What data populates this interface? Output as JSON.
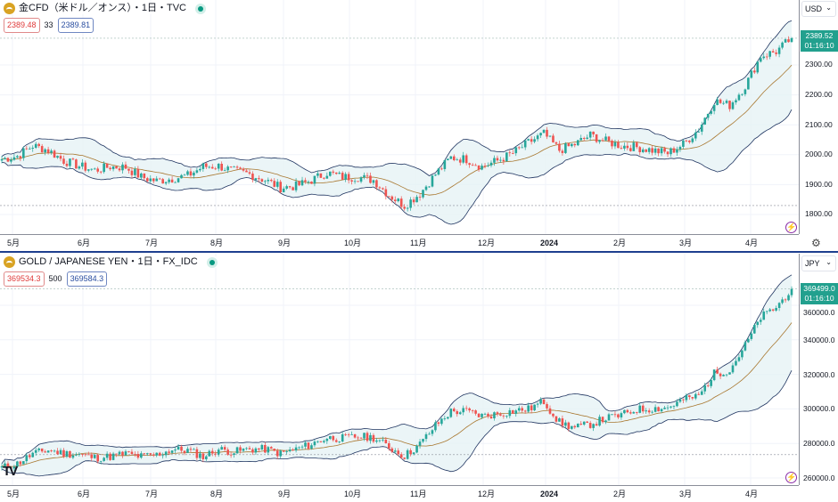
{
  "top": {
    "title": "金CFD（米ドル／オンス）・1日・TVC",
    "bid": "2389.48",
    "spread": "33",
    "ask": "2389.81",
    "currency": "USD",
    "last_price": "2389.52",
    "countdown": "01:16:10",
    "price_ticks": [
      "2300.00",
      "2200.00",
      "2100.00",
      "2000.00",
      "1900.00",
      "1800.00"
    ]
  },
  "bottom": {
    "title": "GOLD / JAPANESE YEN・1日・FX_IDC",
    "bid": "369534.3",
    "spread": "500",
    "ask": "369584.3",
    "currency": "JPY",
    "last_price": "369499.0",
    "countdown": "01:16:10",
    "price_ticks": [
      "360000.0",
      "340000.0",
      "320000.0",
      "300000.0",
      "280000.0",
      "260000.0"
    ]
  },
  "time_axis": [
    "5月",
    "6月",
    "7月",
    "8月",
    "9月",
    "10月",
    "11月",
    "12月",
    "2024",
    "2月",
    "3月",
    "4月"
  ],
  "logo": "TV",
  "colors": {
    "up": "#26a69a",
    "down": "#ef5350",
    "band_fill": "#e6f3f5",
    "band_line": "#1f3460",
    "basis": "#a8772f",
    "accent": "#22a08e"
  },
  "chart_data": [
    {
      "type": "candlestick",
      "title": "金CFD（米ドル／オンス）・1日・TVC",
      "indicator": "Bollinger Bands (20, 2)",
      "ylim": [
        1750,
        2420
      ],
      "x_note": "weekly closes, Apr 2023 – Apr 2024",
      "weekly_close": [
        1985,
        1995,
        2030,
        2015,
        1980,
        1962,
        1948,
        1960,
        1958,
        1925,
        1912,
        1920,
        1930,
        1960,
        1962,
        1945,
        1935,
        1915,
        1890,
        1895,
        1915,
        1940,
        1925,
        1925,
        1915,
        1865,
        1830,
        1870,
        1935,
        1990,
        1985,
        1960,
        1980,
        2005,
        2040,
        2070,
        2015,
        2035,
        2065,
        2045,
        2030,
        2025,
        2015,
        2005,
        2035,
        2085,
        2180,
        2165,
        2230,
        2330,
        2345,
        2389.52
      ]
    },
    {
      "type": "candlestick",
      "title": "GOLD / JAPANESE YEN・1日・FX_IDC",
      "indicator": "Bollinger Bands (20, 2)",
      "ylim": [
        255000,
        375000
      ],
      "x_note": "weekly closes, Apr 2023 – Apr 2024",
      "weekly_close": [
        266000,
        268300,
        274000,
        276100,
        274200,
        273700,
        271700,
        272400,
        274100,
        272400,
        273400,
        276500,
        276000,
        272400,
        276600,
        275200,
        276700,
        276700,
        274100,
        276700,
        279600,
        283200,
        283000,
        284000,
        283400,
        277900,
        272700,
        279600,
        290300,
        298500,
        298700,
        296000,
        297000,
        298700,
        299900,
        304300,
        292200,
        289000,
        291200,
        294500,
        296400,
        299700,
        300200,
        300800,
        305300,
        307500,
        320500,
        322600,
        336700,
        353000,
        358800,
        369499
      ]
    }
  ]
}
